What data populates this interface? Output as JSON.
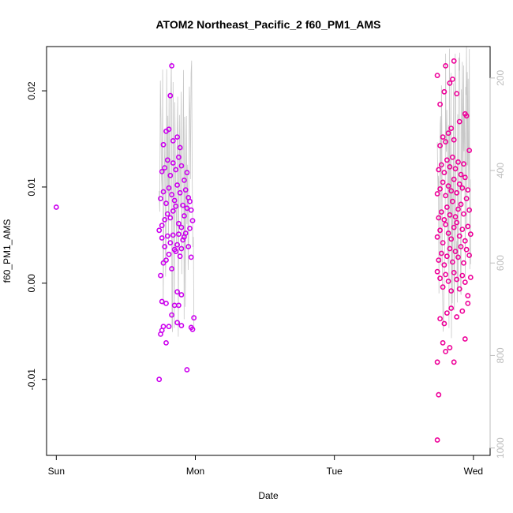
{
  "chart_data": {
    "type": "scatter",
    "title": "ATOM2 Northeast_Pacific_2 f60_PM1_AMS",
    "xlabel": "Date",
    "ylabel": "f60_PM1_AMS",
    "x_ticks": [
      "Sun",
      "Mon",
      "Tue",
      "Wed"
    ],
    "y_ticks": [
      "-0.01",
      "0.00",
      "0.01",
      "0.02"
    ],
    "y2_ticks": [
      "200",
      "400",
      "600",
      "800",
      "1000"
    ],
    "xlim_days": [
      -0.07,
      3.12
    ],
    "ylim": [
      -0.0179,
      0.0246
    ],
    "y2lim": [
      1016,
      132
    ],
    "grid": false,
    "colors": {
      "flight_1": "#cc00ee",
      "flight_2": "#ee0099",
      "altitude_line": "#c8c8c8",
      "axis": "#000000",
      "secondary_axis": "#bdbdbd"
    },
    "series": [
      {
        "name": "",
        "color": "#cc00ee",
        "points": [
          [
            0.0,
            0.0079
          ],
          [
            0.74,
            -0.01
          ],
          [
            0.75,
            -0.0053
          ],
          [
            0.76,
            -0.0049
          ],
          [
            0.77,
            -0.0045
          ],
          [
            0.79,
            -0.0062
          ],
          [
            0.81,
            -0.0045
          ],
          [
            0.85,
            -0.0023
          ],
          [
            0.87,
            -0.0041
          ],
          [
            0.88,
            -0.0023
          ],
          [
            0.9,
            -0.0044
          ],
          [
            0.94,
            -0.009
          ],
          [
            0.97,
            -0.0046
          ],
          [
            0.98,
            -0.0048
          ],
          [
            0.99,
            -0.0036
          ],
          [
            0.76,
            -0.0019
          ],
          [
            0.79,
            -0.0021
          ],
          [
            0.83,
            -0.0033
          ],
          [
            0.87,
            -0.0009
          ],
          [
            0.9,
            -0.0012
          ],
          [
            0.75,
            0.0008
          ],
          [
            0.77,
            0.0021
          ],
          [
            0.79,
            0.0024
          ],
          [
            0.81,
            0.003
          ],
          [
            0.83,
            0.0015
          ],
          [
            0.85,
            0.0035
          ],
          [
            0.87,
            0.004
          ],
          [
            0.89,
            0.0028
          ],
          [
            0.91,
            0.0045
          ],
          [
            0.93,
            0.0052
          ],
          [
            0.95,
            0.0038
          ],
          [
            0.97,
            0.0027
          ],
          [
            0.74,
            0.0055
          ],
          [
            0.76,
            0.006
          ],
          [
            0.78,
            0.0066
          ],
          [
            0.8,
            0.0072
          ],
          [
            0.82,
            0.0068
          ],
          [
            0.84,
            0.0075
          ],
          [
            0.86,
            0.008
          ],
          [
            0.88,
            0.0062
          ],
          [
            0.9,
            0.0058
          ],
          [
            0.92,
            0.007
          ],
          [
            0.94,
            0.0078
          ],
          [
            0.96,
            0.0085
          ],
          [
            0.98,
            0.0065
          ],
          [
            0.75,
            0.0088
          ],
          [
            0.77,
            0.0095
          ],
          [
            0.79,
            0.0083
          ],
          [
            0.81,
            0.0099
          ],
          [
            0.83,
            0.0092
          ],
          [
            0.85,
            0.0086
          ],
          [
            0.87,
            0.0102
          ],
          [
            0.89,
            0.0094
          ],
          [
            0.91,
            0.0081
          ],
          [
            0.93,
            0.0097
          ],
          [
            0.95,
            0.0089
          ],
          [
            0.97,
            0.0076
          ],
          [
            0.76,
            0.0116
          ],
          [
            0.78,
            0.012
          ],
          [
            0.8,
            0.0128
          ],
          [
            0.82,
            0.0112
          ],
          [
            0.84,
            0.0125
          ],
          [
            0.86,
            0.0118
          ],
          [
            0.88,
            0.0131
          ],
          [
            0.9,
            0.0122
          ],
          [
            0.92,
            0.0107
          ],
          [
            0.94,
            0.0115
          ],
          [
            0.77,
            0.0144
          ],
          [
            0.79,
            0.0158
          ],
          [
            0.81,
            0.016
          ],
          [
            0.84,
            0.0148
          ],
          [
            0.87,
            0.0152
          ],
          [
            0.89,
            0.0141
          ],
          [
            0.82,
            0.0195
          ],
          [
            0.83,
            0.0226
          ],
          [
            0.76,
            0.0047
          ],
          [
            0.8,
            0.0049
          ],
          [
            0.84,
            0.005
          ],
          [
            0.88,
            0.0051
          ],
          [
            0.92,
            0.0048
          ],
          [
            0.96,
            0.0057
          ],
          [
            0.78,
            0.0038
          ],
          [
            0.82,
            0.0042
          ],
          [
            0.86,
            0.0033
          ],
          [
            0.9,
            0.0036
          ]
        ]
      },
      {
        "name": "",
        "color": "#ee0099",
        "points": [
          [
            2.74,
            -0.0163
          ],
          [
            2.75,
            -0.0116
          ],
          [
            2.74,
            -0.0082
          ],
          [
            2.78,
            -0.0062
          ],
          [
            2.8,
            -0.0071
          ],
          [
            2.83,
            -0.0067
          ],
          [
            2.86,
            -0.0082
          ],
          [
            2.94,
            -0.0058
          ],
          [
            2.76,
            -0.0037
          ],
          [
            2.79,
            -0.0042
          ],
          [
            2.81,
            -0.0031
          ],
          [
            2.84,
            -0.0026
          ],
          [
            2.88,
            -0.0035
          ],
          [
            2.92,
            -0.0029
          ],
          [
            2.96,
            -0.0021
          ],
          [
            2.74,
            0.0012
          ],
          [
            2.76,
            0.0005
          ],
          [
            2.78,
            -0.0004
          ],
          [
            2.8,
            0.0009
          ],
          [
            2.82,
            0.0002
          ],
          [
            2.84,
            -0.0008
          ],
          [
            2.86,
            0.0011
          ],
          [
            2.88,
            0.0004
          ],
          [
            2.9,
            -0.0006
          ],
          [
            2.92,
            0.0008
          ],
          [
            2.94,
            0.0001
          ],
          [
            2.96,
            -0.0013
          ],
          [
            2.98,
            0.0006
          ],
          [
            2.75,
            0.0024
          ],
          [
            2.77,
            0.0031
          ],
          [
            2.79,
            0.0019
          ],
          [
            2.81,
            0.0028
          ],
          [
            2.83,
            0.0036
          ],
          [
            2.85,
            0.0022
          ],
          [
            2.87,
            0.0033
          ],
          [
            2.89,
            0.0027
          ],
          [
            2.91,
            0.0038
          ],
          [
            2.93,
            0.0021
          ],
          [
            2.95,
            0.0035
          ],
          [
            2.97,
            0.0029
          ],
          [
            2.74,
            0.0048
          ],
          [
            2.76,
            0.0055
          ],
          [
            2.78,
            0.0042
          ],
          [
            2.8,
            0.0061
          ],
          [
            2.82,
            0.0052
          ],
          [
            2.84,
            0.0046
          ],
          [
            2.86,
            0.0058
          ],
          [
            2.88,
            0.0063
          ],
          [
            2.9,
            0.0049
          ],
          [
            2.92,
            0.0056
          ],
          [
            2.94,
            0.0044
          ],
          [
            2.96,
            0.0059
          ],
          [
            2.98,
            0.0051
          ],
          [
            2.75,
            0.0068
          ],
          [
            2.77,
            0.0074
          ],
          [
            2.79,
            0.0066
          ],
          [
            2.81,
            0.0079
          ],
          [
            2.83,
            0.0071
          ],
          [
            2.85,
            0.0085
          ],
          [
            2.87,
            0.0069
          ],
          [
            2.89,
            0.0077
          ],
          [
            2.91,
            0.0082
          ],
          [
            2.93,
            0.0072
          ],
          [
            2.95,
            0.0088
          ],
          [
            2.97,
            0.0076
          ],
          [
            2.74,
            0.0093
          ],
          [
            2.76,
            0.0098
          ],
          [
            2.78,
            0.0105
          ],
          [
            2.8,
            0.0091
          ],
          [
            2.82,
            0.0101
          ],
          [
            2.84,
            0.0096
          ],
          [
            2.86,
            0.0108
          ],
          [
            2.88,
            0.0094
          ],
          [
            2.9,
            0.0103
          ],
          [
            2.92,
            0.0099
          ],
          [
            2.94,
            0.011
          ],
          [
            2.96,
            0.0097
          ],
          [
            2.75,
            0.0118
          ],
          [
            2.77,
            0.0123
          ],
          [
            2.79,
            0.0115
          ],
          [
            2.81,
            0.0128
          ],
          [
            2.83,
            0.0121
          ],
          [
            2.85,
            0.0131
          ],
          [
            2.87,
            0.0119
          ],
          [
            2.89,
            0.0126
          ],
          [
            2.91,
            0.0113
          ],
          [
            2.93,
            0.0124
          ],
          [
            2.76,
            0.0143
          ],
          [
            2.78,
            0.0152
          ],
          [
            2.8,
            0.0147
          ],
          [
            2.82,
            0.0156
          ],
          [
            2.84,
            0.0161
          ],
          [
            2.86,
            0.0149
          ],
          [
            2.9,
            0.0168
          ],
          [
            2.94,
            0.0176
          ],
          [
            2.76,
            0.0186
          ],
          [
            2.79,
            0.0199
          ],
          [
            2.83,
            0.0208
          ],
          [
            2.85,
            0.0212
          ],
          [
            2.88,
            0.0197
          ],
          [
            2.74,
            0.0216
          ],
          [
            2.8,
            0.0226
          ],
          [
            2.86,
            0.0231
          ],
          [
            2.95,
            0.0174
          ],
          [
            2.97,
            0.0138
          ]
        ]
      }
    ]
  }
}
